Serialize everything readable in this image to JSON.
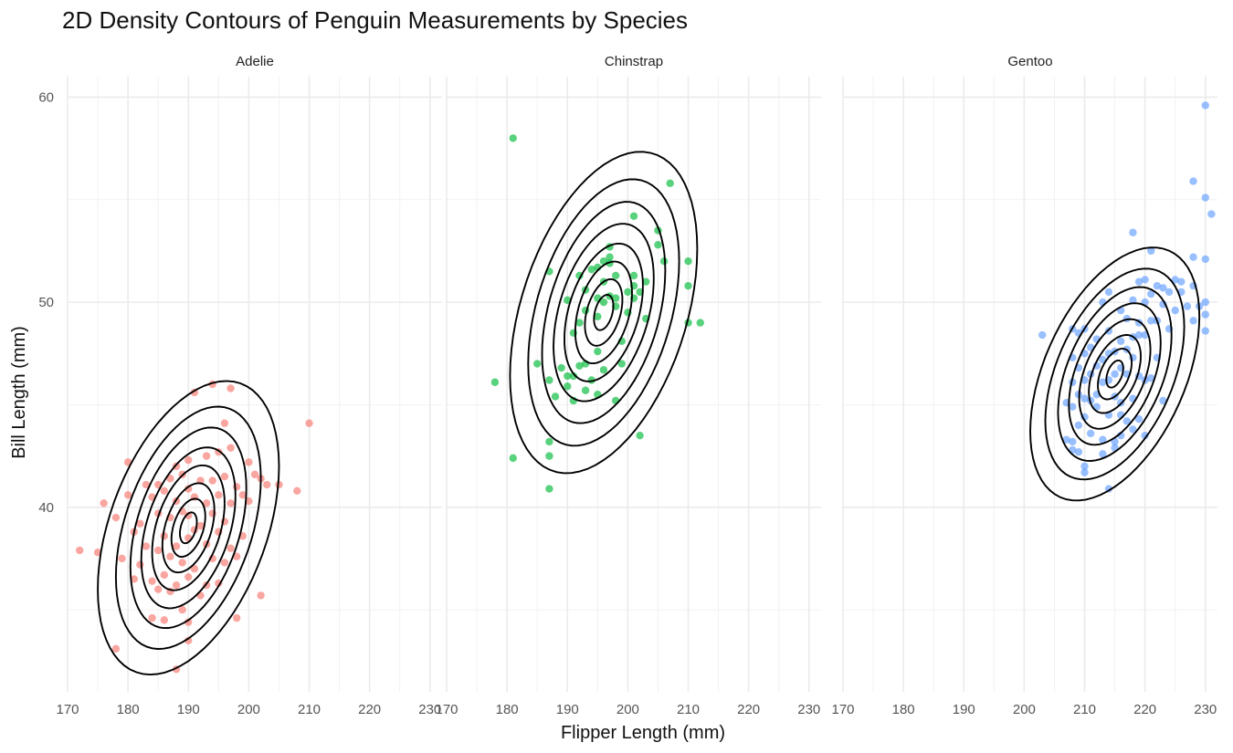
{
  "chart_data": {
    "type": "scatter",
    "title": "2D Density Contours of Penguin Measurements by Species",
    "xlabel": "Flipper Length (mm)",
    "ylabel": "Bill Length (mm)",
    "xlim": [
      170,
      232
    ],
    "ylim": [
      31,
      61
    ],
    "x_ticks": [
      170,
      180,
      190,
      200,
      210,
      220,
      230
    ],
    "y_ticks": [
      40,
      50,
      60
    ],
    "grid": true,
    "legend": "none",
    "contour_color": "#000000",
    "panel_background": "#ffffff",
    "grid_color": "#ebebeb",
    "panels": [
      {
        "label": "Adelie",
        "color": "#F8766D",
        "center": [
          190,
          39
        ],
        "contour_radii": [
          [
            15,
            6.5
          ],
          [
            12,
            5.4
          ],
          [
            9.6,
            4.5
          ],
          [
            7.8,
            3.6
          ],
          [
            6,
            2.8
          ],
          [
            4.3,
            2
          ],
          [
            2.8,
            1.3
          ],
          [
            1.4,
            0.7
          ]
        ],
        "points": [
          [
            172,
            37.9
          ],
          [
            175,
            37.8
          ],
          [
            176,
            40.2
          ],
          [
            178,
            33.1
          ],
          [
            178,
            39.5
          ],
          [
            179,
            37.5
          ],
          [
            180,
            42.2
          ],
          [
            180,
            40.6
          ],
          [
            181,
            38.8
          ],
          [
            181,
            36.5
          ],
          [
            182,
            39.2
          ],
          [
            182,
            37.2
          ],
          [
            183,
            41.1
          ],
          [
            183,
            38.1
          ],
          [
            184,
            40.5
          ],
          [
            184,
            36.4
          ],
          [
            184,
            34.6
          ],
          [
            185,
            41.1
          ],
          [
            185,
            39.7
          ],
          [
            185,
            37.9
          ],
          [
            185,
            36.0
          ],
          [
            186,
            40.8
          ],
          [
            186,
            38.6
          ],
          [
            186,
            36.7
          ],
          [
            186,
            34.5
          ],
          [
            187,
            41.4
          ],
          [
            187,
            39.5
          ],
          [
            187,
            37.6
          ],
          [
            187,
            35.9
          ],
          [
            188,
            42.0
          ],
          [
            188,
            40.3
          ],
          [
            188,
            38.1
          ],
          [
            188,
            36.2
          ],
          [
            188,
            32.1
          ],
          [
            189,
            41.6
          ],
          [
            189,
            39.8
          ],
          [
            189,
            37.3
          ],
          [
            189,
            35.0
          ],
          [
            190,
            42.3
          ],
          [
            190,
            40.9
          ],
          [
            190,
            39.6
          ],
          [
            190,
            38.5
          ],
          [
            190,
            36.6
          ],
          [
            190,
            34.4
          ],
          [
            190,
            33.5
          ],
          [
            191,
            45.6
          ],
          [
            191,
            40.5
          ],
          [
            191,
            38.9
          ],
          [
            191,
            37.0
          ],
          [
            192,
            41.3
          ],
          [
            192,
            39.1
          ],
          [
            192,
            35.7
          ],
          [
            193,
            42.5
          ],
          [
            193,
            40.2
          ],
          [
            193,
            38.2
          ],
          [
            193,
            36.2
          ],
          [
            194,
            46.0
          ],
          [
            194,
            41.3
          ],
          [
            194,
            39.7
          ],
          [
            194,
            37.5
          ],
          [
            195,
            42.7
          ],
          [
            195,
            40.6
          ],
          [
            195,
            38.8
          ],
          [
            195,
            36.3
          ],
          [
            196,
            44.1
          ],
          [
            196,
            41.5
          ],
          [
            196,
            39.3
          ],
          [
            196,
            37.3
          ],
          [
            197,
            45.8
          ],
          [
            197,
            42.9
          ],
          [
            197,
            40.2
          ],
          [
            197,
            38.0
          ],
          [
            198,
            41.0
          ],
          [
            198,
            37.6
          ],
          [
            198,
            34.6
          ],
          [
            199,
            40.6
          ],
          [
            199,
            38.6
          ],
          [
            200,
            42.2
          ],
          [
            200,
            40.3
          ],
          [
            201,
            41.6
          ],
          [
            202,
            41.4
          ],
          [
            202,
            35.7
          ],
          [
            203,
            41.1
          ],
          [
            205,
            41.1
          ],
          [
            208,
            40.8
          ],
          [
            210,
            44.1
          ]
        ]
      },
      {
        "label": "Chinstrap",
        "color": "#00BA38",
        "center": [
          196,
          49.5
        ],
        "contour_radii": [
          [
            15.5,
            7.2
          ],
          [
            12.5,
            6
          ],
          [
            10.2,
            5
          ],
          [
            8.3,
            4
          ],
          [
            6.5,
            3.1
          ],
          [
            4.7,
            2.3
          ],
          [
            3.1,
            1.5
          ],
          [
            1.6,
            0.8
          ]
        ],
        "points": [
          [
            178,
            46.1
          ],
          [
            181,
            58.0
          ],
          [
            181,
            42.4
          ],
          [
            185,
            47.0
          ],
          [
            187,
            51.5
          ],
          [
            187,
            46.2
          ],
          [
            187,
            43.2
          ],
          [
            187,
            42.5
          ],
          [
            187,
            40.9
          ],
          [
            188,
            45.4
          ],
          [
            189,
            46.8
          ],
          [
            190,
            50.1
          ],
          [
            190,
            46.4
          ],
          [
            190,
            45.9
          ],
          [
            191,
            48.5
          ],
          [
            191,
            46.4
          ],
          [
            191,
            45.2
          ],
          [
            192,
            51.3
          ],
          [
            192,
            49.0
          ],
          [
            192,
            46.9
          ],
          [
            193,
            50.6
          ],
          [
            193,
            49.6
          ],
          [
            193,
            47.0
          ],
          [
            193,
            45.7
          ],
          [
            194,
            51.6
          ],
          [
            194,
            46.2
          ],
          [
            195,
            51.7
          ],
          [
            195,
            50.2
          ],
          [
            195,
            49.3
          ],
          [
            195,
            47.6
          ],
          [
            195,
            45.5
          ],
          [
            196,
            52.0
          ],
          [
            196,
            51.0
          ],
          [
            196,
            50.0
          ],
          [
            196,
            46.7
          ],
          [
            197,
            52.7
          ],
          [
            197,
            52.2
          ],
          [
            197,
            51.9
          ],
          [
            197,
            50.3
          ],
          [
            198,
            51.3
          ],
          [
            198,
            50.2
          ],
          [
            198,
            49.8
          ],
          [
            198,
            45.2
          ],
          [
            199,
            48.1
          ],
          [
            199,
            47.0
          ],
          [
            200,
            50.5
          ],
          [
            200,
            49.5
          ],
          [
            201,
            54.2
          ],
          [
            201,
            51.3
          ],
          [
            201,
            50.8
          ],
          [
            201,
            50.2
          ],
          [
            202,
            50.5
          ],
          [
            202,
            43.5
          ],
          [
            203,
            51.0
          ],
          [
            203,
            49.2
          ],
          [
            205,
            53.5
          ],
          [
            205,
            52.8
          ],
          [
            206,
            52.0
          ],
          [
            207,
            55.8
          ],
          [
            210,
            52.0
          ],
          [
            210,
            50.8
          ],
          [
            210,
            49.0
          ],
          [
            212,
            49.0
          ]
        ]
      },
      {
        "label": "Gentoo",
        "color": "#619CFF",
        "center": [
          215,
          46.5
        ],
        "contour_radii": [
          [
            14,
            5.5
          ],
          [
            11.5,
            4.6
          ],
          [
            9.4,
            3.8
          ],
          [
            7.6,
            3.1
          ],
          [
            5.9,
            2.4
          ],
          [
            4.3,
            1.7
          ],
          [
            2.8,
            1.1
          ],
          [
            1.4,
            0.6
          ]
        ],
        "points": [
          [
            203,
            48.4
          ],
          [
            207,
            45.1
          ],
          [
            207,
            43.3
          ],
          [
            208,
            48.7
          ],
          [
            208,
            47.3
          ],
          [
            208,
            46.1
          ],
          [
            208,
            44.9
          ],
          [
            208,
            43.2
          ],
          [
            208,
            42.8
          ],
          [
            209,
            48.5
          ],
          [
            209,
            46.8
          ],
          [
            209,
            45.5
          ],
          [
            209,
            44.0
          ],
          [
            209,
            42.7
          ],
          [
            210,
            48.7
          ],
          [
            210,
            47.5
          ],
          [
            210,
            46.2
          ],
          [
            210,
            45.3
          ],
          [
            210,
            44.4
          ],
          [
            210,
            42.0
          ],
          [
            210,
            41.7
          ],
          [
            211,
            47.8
          ],
          [
            211,
            46.5
          ],
          [
            211,
            45.2
          ],
          [
            211,
            43.6
          ],
          [
            212,
            48.2
          ],
          [
            212,
            46.9
          ],
          [
            212,
            45.5
          ],
          [
            212,
            44.9
          ],
          [
            213,
            50.0
          ],
          [
            213,
            47.2
          ],
          [
            213,
            46.1
          ],
          [
            213,
            43.3
          ],
          [
            213,
            42.6
          ],
          [
            214,
            50.5
          ],
          [
            214,
            48.6
          ],
          [
            214,
            47.5
          ],
          [
            214,
            46.2
          ],
          [
            214,
            44.5
          ],
          [
            214,
            40.9
          ],
          [
            215,
            47.6
          ],
          [
            215,
            46.5
          ],
          [
            215,
            45.4
          ],
          [
            215,
            43.2
          ],
          [
            215,
            42.9
          ],
          [
            216,
            49.6
          ],
          [
            216,
            48.1
          ],
          [
            216,
            46.8
          ],
          [
            216,
            45.1
          ],
          [
            216,
            44.5
          ],
          [
            216,
            43.5
          ],
          [
            217,
            49.2
          ],
          [
            217,
            47.7
          ],
          [
            217,
            46.5
          ],
          [
            217,
            44.2
          ],
          [
            218,
            53.4
          ],
          [
            218,
            50.1
          ],
          [
            218,
            48.3
          ],
          [
            218,
            47.3
          ],
          [
            218,
            45.3
          ],
          [
            218,
            43.8
          ],
          [
            219,
            51.0
          ],
          [
            219,
            49.0
          ],
          [
            219,
            48.4
          ],
          [
            219,
            46.4
          ],
          [
            219,
            44.3
          ],
          [
            220,
            51.1
          ],
          [
            220,
            50.0
          ],
          [
            220,
            48.4
          ],
          [
            220,
            46.2
          ],
          [
            220,
            43.5
          ],
          [
            221,
            52.5
          ],
          [
            221,
            50.4
          ],
          [
            221,
            49.1
          ],
          [
            221,
            46.3
          ],
          [
            222,
            50.8
          ],
          [
            222,
            49.1
          ],
          [
            222,
            47.3
          ],
          [
            223,
            50.7
          ],
          [
            223,
            49.9
          ],
          [
            223,
            45.2
          ],
          [
            224,
            50.5
          ],
          [
            224,
            48.7
          ],
          [
            225,
            51.1
          ],
          [
            225,
            49.6
          ],
          [
            226,
            51.0
          ],
          [
            226,
            50.5
          ],
          [
            227,
            49.8
          ],
          [
            228,
            55.9
          ],
          [
            228,
            52.2
          ],
          [
            228,
            50.8
          ],
          [
            228,
            49.1
          ],
          [
            229,
            49.8
          ],
          [
            230,
            59.6
          ],
          [
            230,
            55.1
          ],
          [
            230,
            52.1
          ],
          [
            230,
            50.0
          ],
          [
            230,
            49.4
          ],
          [
            230,
            48.6
          ],
          [
            231,
            54.3
          ]
        ]
      }
    ]
  }
}
